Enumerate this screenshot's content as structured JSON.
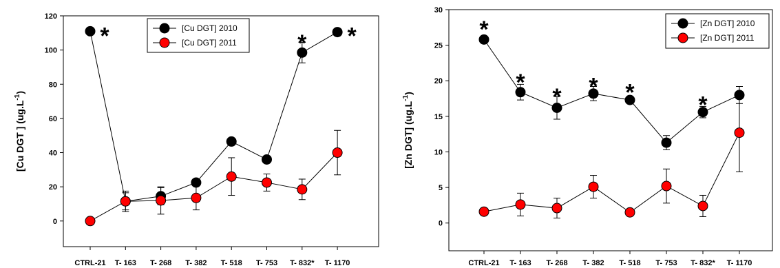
{
  "chart_data": [
    {
      "id": "cu",
      "type": "line",
      "ylabel": "[Cu DGT ] (ug.L",
      "ylabel_sup": "-1",
      "ylabel_end": ")",
      "ylim": [
        -15,
        120
      ],
      "yticks": [
        0,
        20,
        40,
        60,
        80,
        100,
        120
      ],
      "categories": [
        "CTRL-21",
        "T- 163",
        "T- 268",
        "T- 382",
        "T- 518",
        "T- 753",
        "T- 832*",
        "T- 1170"
      ],
      "legend_position": "top-right",
      "series": [
        {
          "name": "[Cu DGT] 2010",
          "color": "#000000",
          "values": [
            111,
            11.5,
            14.5,
            22.5,
            46.5,
            36,
            98.5,
            110.5
          ],
          "errors": [
            0,
            5,
            5,
            0,
            0,
            0,
            6,
            0
          ]
        },
        {
          "name": "[Cu DGT] 2011",
          "color": "#ff0000",
          "values": [
            0,
            11.5,
            12,
            13.5,
            26,
            22.5,
            18.5,
            40
          ],
          "errors": [
            0,
            6,
            8,
            7,
            11,
            5,
            6,
            13
          ]
        }
      ],
      "annotations": [
        {
          "category": "CTRL-21",
          "text": "*",
          "y": 111
        },
        {
          "category": "T- 832*",
          "text": "*",
          "y": 105
        },
        {
          "category": "T- 1170",
          "text": "*",
          "y": 111
        }
      ]
    },
    {
      "id": "zn",
      "type": "line",
      "ylabel": "[Zn DGT] (ug.L",
      "ylabel_sup": "-1",
      "ylabel_end": ")",
      "ylim": [
        -3.9,
        30
      ],
      "yticks": [
        0,
        5,
        10,
        15,
        20,
        25,
        30
      ],
      "categories": [
        "CTRL-21",
        "T- 163",
        "T- 268",
        "T- 382",
        "T- 518",
        "T- 753",
        "T- 832*",
        "T- 1170"
      ],
      "legend_position": "top-right",
      "series": [
        {
          "name": "[Zn DGT] 2010",
          "color": "#000000",
          "values": [
            25.8,
            18.4,
            16.2,
            18.2,
            17.3,
            11.3,
            15.6,
            18
          ],
          "errors": [
            0,
            1.1,
            1.6,
            1.0,
            0,
            1.0,
            0.8,
            1.2
          ]
        },
        {
          "name": "[Zn DGT] 2011",
          "color": "#ff0000",
          "values": [
            1.6,
            2.6,
            2.1,
            5.1,
            1.5,
            5.2,
            2.4,
            12.7
          ],
          "errors": [
            0,
            1.6,
            1.4,
            1.6,
            0,
            2.4,
            1.5,
            5.5
          ]
        }
      ],
      "annotations": [
        {
          "category": "CTRL-21",
          "text": "*",
          "y": 27.5
        },
        {
          "category": "T- 163",
          "text": "*",
          "y": 20
        },
        {
          "category": "T- 268",
          "text": "*",
          "y": 18
        },
        {
          "category": "T- 382",
          "text": "*",
          "y": 19.5
        },
        {
          "category": "T- 518",
          "text": "*",
          "y": 18.6
        },
        {
          "category": "T- 832*",
          "text": "*",
          "y": 16.9
        }
      ]
    }
  ]
}
